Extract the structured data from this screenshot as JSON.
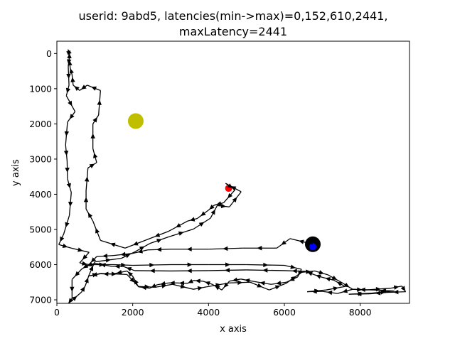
{
  "chart_data": {
    "type": "line",
    "title_lines": [
      "userid: 9abd5, latencies(min->max)=0,152,610,2441,",
      "maxLatency=2441"
    ],
    "xlabel": "x axis",
    "ylabel": "y axis",
    "xlim": [
      0,
      9300
    ],
    "ylim": [
      -350,
      7100
    ],
    "y_inverted": true,
    "grid": false,
    "x_ticks": [
      0,
      2000,
      4000,
      6000,
      8000
    ],
    "y_ticks": [
      0,
      1000,
      2000,
      3000,
      4000,
      5000,
      6000,
      7000
    ],
    "colors": {
      "path": "#000000",
      "target": "#bfbf00",
      "start": "#000000",
      "end_inner": "#0000ff",
      "marker": "#ff0000"
    },
    "markers": [
      {
        "name": "yellow-target",
        "x": 2080,
        "y": 1920,
        "color": "#bfbf00",
        "radius": 11
      },
      {
        "name": "black-start",
        "x": 6750,
        "y": 5420,
        "color": "#000000",
        "radius": 11
      },
      {
        "name": "blue-end",
        "x": 6750,
        "y": 5490,
        "color": "#0000ff",
        "radius": 5
      },
      {
        "name": "red-point",
        "x": 4530,
        "y": 3830,
        "color": "#ff0000",
        "radius": 5
      }
    ],
    "path": [
      [
        6750,
        5420
      ],
      [
        6150,
        5260
      ],
      [
        5800,
        5530
      ],
      [
        4900,
        5530
      ],
      [
        4000,
        5560
      ],
      [
        3000,
        5560
      ],
      [
        2400,
        5580
      ],
      [
        2000,
        5680
      ],
      [
        1500,
        5740
      ],
      [
        1050,
        5770
      ],
      [
        850,
        5990
      ],
      [
        650,
        6130
      ],
      [
        400,
        6420
      ],
      [
        400,
        6960
      ],
      [
        300,
        7110
      ],
      [
        650,
        6780
      ],
      [
        750,
        6600
      ],
      [
        850,
        6290
      ],
      [
        1000,
        5920
      ],
      [
        1700,
        5820
      ],
      [
        2050,
        5640
      ],
      [
        2450,
        5400
      ],
      [
        2950,
        5210
      ],
      [
        3600,
        4990
      ],
      [
        4050,
        4680
      ],
      [
        4230,
        4320
      ],
      [
        4550,
        4360
      ],
      [
        4860,
        3930
      ],
      [
        4450,
        3690
      ],
      [
        4700,
        3870
      ],
      [
        4400,
        4240
      ],
      [
        4150,
        4310
      ],
      [
        4000,
        4450
      ],
      [
        3700,
        4690
      ],
      [
        3450,
        4760
      ],
      [
        2950,
        5050
      ],
      [
        2350,
        5300
      ],
      [
        1800,
        5530
      ],
      [
        1150,
        5310
      ],
      [
        950,
        4760
      ],
      [
        770,
        4420
      ],
      [
        770,
        3900
      ],
      [
        820,
        3250
      ],
      [
        1050,
        3100
      ],
      [
        950,
        2700
      ],
      [
        950,
        2000
      ],
      [
        1100,
        1750
      ],
      [
        1150,
        1050
      ],
      [
        800,
        900
      ],
      [
        600,
        1050
      ],
      [
        430,
        900
      ],
      [
        400,
        600
      ],
      [
        350,
        400
      ],
      [
        330,
        150
      ],
      [
        330,
        0
      ],
      [
        300,
        -100
      ],
      [
        330,
        80
      ],
      [
        300,
        380
      ],
      [
        320,
        900
      ],
      [
        250,
        1200
      ],
      [
        480,
        1650
      ],
      [
        280,
        1950
      ],
      [
        230,
        2600
      ],
      [
        270,
        3050
      ],
      [
        280,
        3560
      ],
      [
        380,
        3950
      ],
      [
        330,
        4600
      ],
      [
        180,
        5130
      ],
      [
        50,
        5430
      ],
      [
        380,
        5530
      ],
      [
        850,
        5650
      ],
      [
        600,
        5950
      ],
      [
        850,
        6000
      ],
      [
        1500,
        6000
      ],
      [
        2000,
        6020
      ],
      [
        3000,
        6000
      ],
      [
        4000,
        6000
      ],
      [
        5000,
        6000
      ],
      [
        6000,
        6020
      ],
      [
        6450,
        6130
      ],
      [
        6350,
        6350
      ],
      [
        6050,
        6500
      ],
      [
        5650,
        6560
      ],
      [
        5200,
        6480
      ],
      [
        4850,
        6410
      ],
      [
        4550,
        6470
      ],
      [
        4350,
        6720
      ],
      [
        4100,
        6560
      ],
      [
        3850,
        6470
      ],
      [
        3600,
        6450
      ],
      [
        3450,
        6530
      ],
      [
        3150,
        6520
      ],
      [
        2950,
        6520
      ],
      [
        2650,
        6570
      ],
      [
        2450,
        6670
      ],
      [
        2150,
        6630
      ],
      [
        2000,
        6330
      ],
      [
        1850,
        6180
      ],
      [
        1450,
        6270
      ],
      [
        1150,
        6260
      ],
      [
        850,
        6320
      ],
      [
        1150,
        6250
      ],
      [
        1850,
        6280
      ],
      [
        2150,
        6620
      ],
      [
        2600,
        6640
      ],
      [
        3050,
        6560
      ],
      [
        3600,
        6700
      ],
      [
        3950,
        6630
      ],
      [
        4550,
        6520
      ],
      [
        5100,
        6500
      ],
      [
        5600,
        6720
      ],
      [
        6050,
        6530
      ],
      [
        6450,
        6220
      ],
      [
        6800,
        6180
      ],
      [
        7150,
        6290
      ],
      [
        7500,
        6500
      ],
      [
        7800,
        6700
      ],
      [
        8150,
        6720
      ],
      [
        8800,
        6670
      ],
      [
        9100,
        6610
      ],
      [
        9200,
        6770
      ],
      [
        8700,
        6790
      ],
      [
        8250,
        6830
      ],
      [
        7700,
        6840
      ],
      [
        8300,
        6810
      ],
      [
        8900,
        6750
      ],
      [
        8350,
        6720
      ],
      [
        7800,
        6700
      ],
      [
        7400,
        6820
      ],
      [
        7000,
        6760
      ],
      [
        6600,
        6770
      ],
      [
        7100,
        6720
      ],
      [
        7600,
        6620
      ],
      [
        7300,
        6440
      ],
      [
        7000,
        6360
      ],
      [
        6800,
        6290
      ],
      [
        6550,
        6190
      ],
      [
        6000,
        6170
      ],
      [
        5000,
        6150
      ],
      [
        4000,
        6170
      ],
      [
        3000,
        6180
      ],
      [
        2050,
        6170
      ],
      [
        1750,
        6050
      ],
      [
        1450,
        6050
      ],
      [
        1000,
        5960
      ],
      [
        750,
        6060
      ]
    ]
  }
}
